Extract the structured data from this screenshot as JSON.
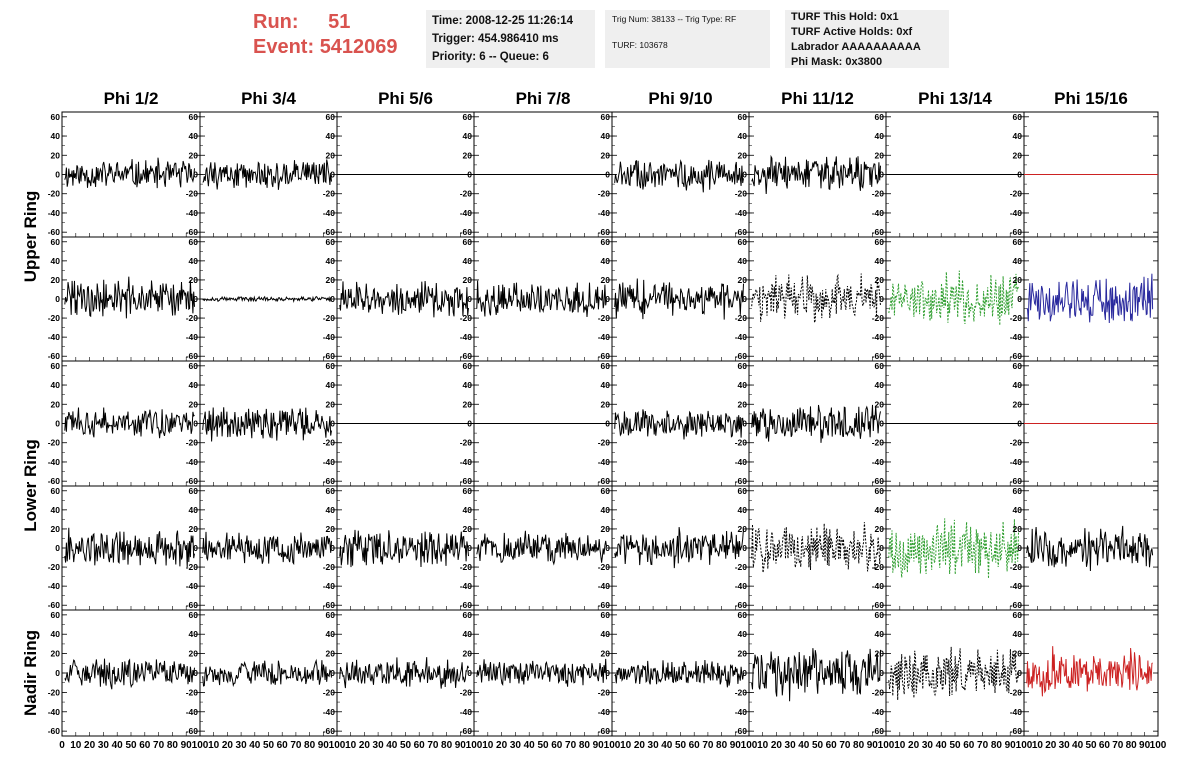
{
  "header": {
    "run_label": "Run:",
    "run_value": "51",
    "event_label": "Event:",
    "event_value": "5412069"
  },
  "info_time": {
    "time": "Time: 2008-12-25 11:26:14",
    "trigger": "Trigger: 454.986410 ms",
    "priority": "Priority: 6 -- Queue: 6"
  },
  "info_trig": {
    "trig": "Trig Num: 38133 -- Trig Type: RF",
    "turf": "TURF: 103678"
  },
  "info_turf": {
    "hold": "TURF This Hold: 0x1",
    "active": "TURF Active Holds: 0xf",
    "labrador": "Labrador AAAAAAAAAA",
    "phimask": "Phi Mask: 0x3800"
  },
  "chart_data": {
    "type": "line",
    "column_titles": [
      "Phi 1/2",
      "Phi 3/4",
      "Phi 5/6",
      "Phi 7/8",
      "Phi 9/10",
      "Phi 11/12",
      "Phi 13/14",
      "Phi 15/16"
    ],
    "ring_labels": [
      "Upper Ring",
      "Lower Ring",
      "Nadir Ring"
    ],
    "xlim": [
      0,
      100
    ],
    "ylim": [
      -65,
      65
    ],
    "x_ticks": [
      0,
      10,
      20,
      30,
      40,
      50,
      60,
      70,
      80,
      90,
      100
    ],
    "x_tick_labels": [
      "0",
      "10",
      "20",
      "30",
      "40",
      "50",
      "60",
      "70",
      "80",
      "90",
      "100"
    ],
    "y_ticks": [
      -60,
      -40,
      -20,
      0,
      20,
      40,
      60
    ],
    "y_tick_labels": [
      "-60",
      "-40",
      "-20",
      "0",
      "20",
      "40",
      "60"
    ],
    "colors": {
      "black": "#000000",
      "red": "#cc2222",
      "green": "#2e9e2e",
      "blue": "#2a2a9e"
    },
    "panels": [
      [
        {
          "style": "solid",
          "color": "#000000",
          "amp": 13
        },
        {
          "style": "solid",
          "color": "#000000",
          "amp": 12
        },
        {
          "style": "flat",
          "color": "#000000",
          "amp": 0
        },
        {
          "style": "flat",
          "color": "#000000",
          "amp": 0
        },
        {
          "style": "solid",
          "color": "#000000",
          "amp": 14
        },
        {
          "style": "solid",
          "color": "#000000",
          "amp": 15
        },
        {
          "style": "flat",
          "color": "#000000",
          "amp": 0
        },
        {
          "style": "flat",
          "color": "#cc2222",
          "amp": 0
        }
      ],
      [
        {
          "style": "solid",
          "color": "#000000",
          "amp": 17
        },
        {
          "style": "solid",
          "color": "#000000",
          "amp": 2
        },
        {
          "style": "solid",
          "color": "#000000",
          "amp": 15
        },
        {
          "style": "solid",
          "color": "#000000",
          "amp": 15
        },
        {
          "style": "solid",
          "color": "#000000",
          "amp": 16
        },
        {
          "style": "dashed",
          "color": "#000000",
          "amp": 20
        },
        {
          "style": "dashed",
          "color": "#2e9e2e",
          "amp": 24
        },
        {
          "style": "solid",
          "color": "#2a2a9e",
          "amp": 22
        }
      ],
      [
        {
          "style": "solid",
          "color": "#000000",
          "amp": 12
        },
        {
          "style": "solid",
          "color": "#000000",
          "amp": 14
        },
        {
          "style": "flat",
          "color": "#000000",
          "amp": 0
        },
        {
          "style": "flat",
          "color": "#000000",
          "amp": 0
        },
        {
          "style": "solid",
          "color": "#000000",
          "amp": 13
        },
        {
          "style": "solid",
          "color": "#000000",
          "amp": 15
        },
        {
          "style": "flat",
          "color": "#000000",
          "amp": 0
        },
        {
          "style": "flat",
          "color": "#cc2222",
          "amp": 0
        }
      ],
      [
        {
          "style": "solid",
          "color": "#000000",
          "amp": 16
        },
        {
          "style": "solid",
          "color": "#000000",
          "amp": 13
        },
        {
          "style": "solid",
          "color": "#000000",
          "amp": 15
        },
        {
          "style": "solid",
          "color": "#000000",
          "amp": 14
        },
        {
          "style": "solid",
          "color": "#000000",
          "amp": 16
        },
        {
          "style": "dashed",
          "color": "#000000",
          "amp": 20
        },
        {
          "style": "dashed",
          "color": "#2e9e2e",
          "amp": 24
        },
        {
          "style": "solid",
          "color": "#000000",
          "amp": 18
        }
      ],
      [
        {
          "style": "solid",
          "color": "#000000",
          "amp": 13
        },
        {
          "style": "solid",
          "color": "#000000",
          "amp": 11
        },
        {
          "style": "solid",
          "color": "#000000",
          "amp": 12
        },
        {
          "style": "solid",
          "color": "#000000",
          "amp": 11
        },
        {
          "style": "solid",
          "color": "#000000",
          "amp": 11
        },
        {
          "style": "solid",
          "color": "#000000",
          "amp": 22
        },
        {
          "style": "dashed",
          "color": "#000000",
          "amp": 22
        },
        {
          "style": "solid",
          "color": "#cc2222",
          "amp": 20
        }
      ]
    ]
  }
}
